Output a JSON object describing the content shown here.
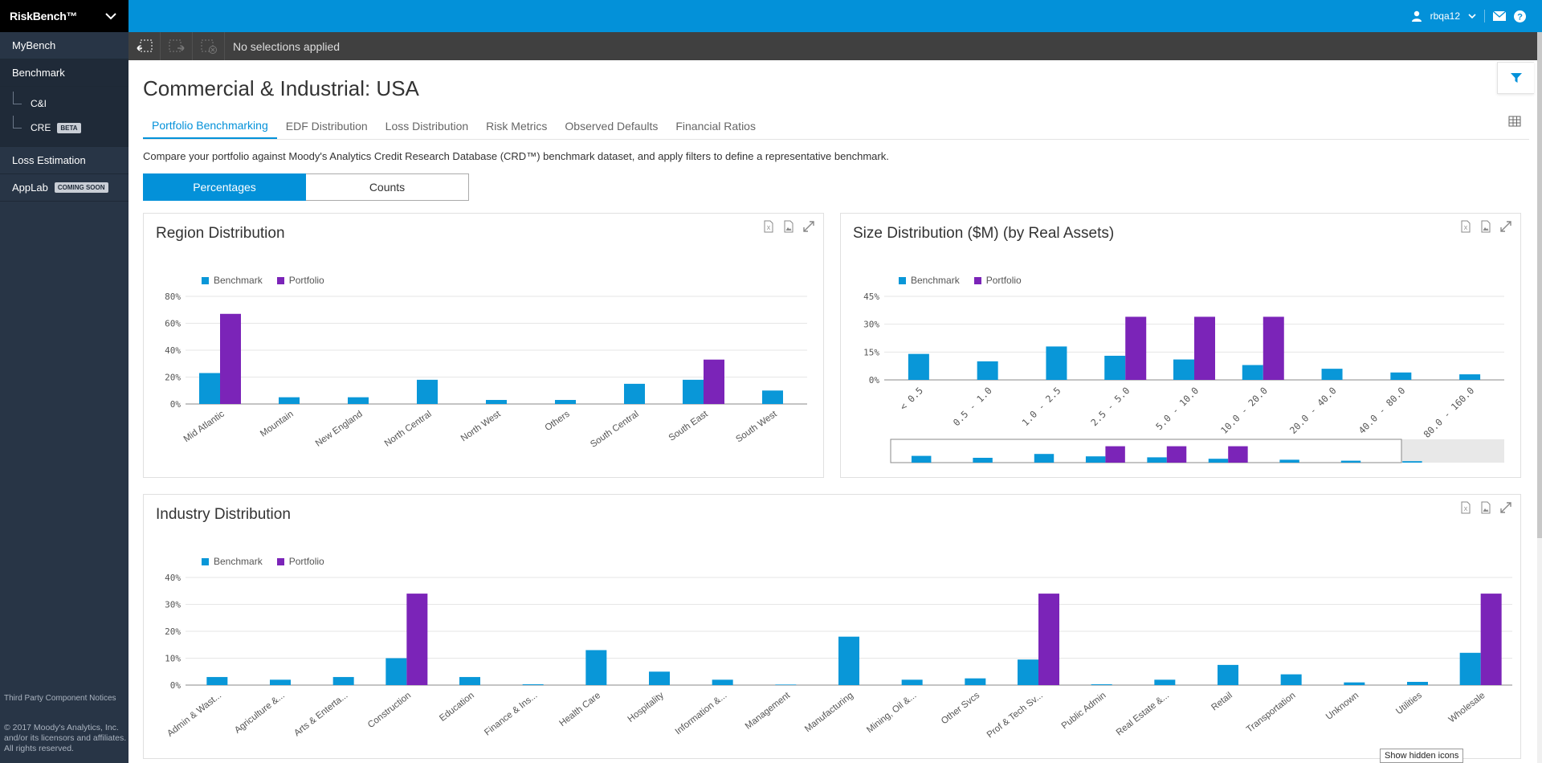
{
  "sidebar": {
    "brand": "RiskBench™",
    "items": [
      {
        "label": "MyBench"
      },
      {
        "label": "Benchmark"
      },
      {
        "label": "Loss Estimation"
      },
      {
        "label": "AppLab",
        "badge": "COMING SOON"
      }
    ],
    "benchmark_sub": [
      {
        "label": "C&I"
      },
      {
        "label": "CRE",
        "badge": "BETA"
      }
    ],
    "footer_link": "Third Party Component Notices",
    "copyright": "© 2017 Moody's Analytics, Inc. and/or its licensors and affiliates. All rights reserved."
  },
  "topbar": {
    "username": "rbqa12",
    "icons": [
      "user-icon",
      "chevron-down-icon",
      "mail-icon",
      "help-icon"
    ]
  },
  "selection_bar": {
    "text": "No selections applied",
    "tools": [
      "selection-back-icon",
      "selection-forward-icon",
      "clear-selections-icon"
    ]
  },
  "main": {
    "title": "Commercial & Industrial: USA",
    "tabs": [
      {
        "label": "Portfolio Benchmarking"
      },
      {
        "label": "EDF Distribution"
      },
      {
        "label": "Loss Distribution"
      },
      {
        "label": "Risk Metrics"
      },
      {
        "label": "Observed Defaults"
      },
      {
        "label": "Financial Ratios"
      }
    ],
    "description": "Compare your portfolio against Moody's Analytics Credit Research Database (CRD™) benchmark dataset, and apply filters to define a representative benchmark.",
    "toggle": {
      "percentages": "Percentages",
      "counts": "Counts"
    }
  },
  "colors": {
    "benchmark": "#0997d8",
    "portfolio": "#7b24b8",
    "accent": "#0391d9"
  },
  "chart_data": [
    {
      "id": "region",
      "type": "bar",
      "title": "Region Distribution",
      "legend": [
        "Benchmark",
        "Portfolio"
      ],
      "yticks": [
        "0%",
        "20%",
        "40%",
        "60%",
        "80%"
      ],
      "ylim": [
        0,
        80
      ],
      "categories": [
        "Mid Atlantic",
        "Mountain",
        "New England",
        "North Central",
        "North West",
        "Others",
        "South Central",
        "South East",
        "South West"
      ],
      "series": [
        {
          "name": "Benchmark",
          "values": [
            23,
            5,
            5,
            18,
            3,
            3,
            15,
            18,
            10
          ]
        },
        {
          "name": "Portfolio",
          "values": [
            67,
            0,
            0,
            0,
            0,
            0,
            0,
            33,
            0
          ]
        }
      ]
    },
    {
      "id": "size",
      "type": "bar",
      "title": "Size Distribution ($M) (by Real Assets)",
      "legend": [
        "Benchmark",
        "Portfolio"
      ],
      "yticks": [
        "0%",
        "15%",
        "30%",
        "45%"
      ],
      "ylim": [
        0,
        45
      ],
      "categories": [
        "< 0.5",
        "0.5 - 1.0",
        "1.0 - 2.5",
        "2.5 - 5.0",
        "5.0 - 10.0",
        "10.0 - 20.0",
        "20.0 - 40.0",
        "40.0 - 80.0",
        "80.0 - 160.0"
      ],
      "series": [
        {
          "name": "Benchmark",
          "values": [
            14,
            10,
            18,
            13,
            11,
            8,
            6,
            4,
            3
          ]
        },
        {
          "name": "Portfolio",
          "values": [
            0,
            0,
            0,
            34,
            34,
            34,
            0,
            0,
            0
          ]
        }
      ]
    },
    {
      "id": "industry",
      "type": "bar",
      "title": "Industry Distribution",
      "legend": [
        "Benchmark",
        "Portfolio"
      ],
      "yticks": [
        "0%",
        "10%",
        "20%",
        "30%",
        "40%"
      ],
      "ylim": [
        0,
        40
      ],
      "categories": [
        "Admin & Wast...",
        "Agriculture &...",
        "Arts & Enterta...",
        "Construction",
        "Education",
        "Finance & Ins...",
        "Health Care",
        "Hospitality",
        "Information &...",
        "Management",
        "Manufacturing",
        "Mining, Oil &...",
        "Other Svcs",
        "Prof & Tech Sv...",
        "Public Admin",
        "Real Estate &...",
        "Retail",
        "Transportation",
        "Unknown",
        "Utilities",
        "Wholesale"
      ],
      "series": [
        {
          "name": "Benchmark",
          "values": [
            3,
            2,
            3,
            10,
            3,
            0.3,
            13,
            5,
            2,
            0.2,
            18,
            2,
            2.5,
            9.5,
            0.3,
            2,
            7.5,
            4,
            1,
            1.2,
            12
          ]
        },
        {
          "name": "Portfolio",
          "values": [
            0,
            0,
            0,
            34,
            0,
            0,
            0,
            0,
            0,
            0,
            0,
            0,
            0,
            34,
            0,
            0,
            0,
            0,
            0,
            0,
            34
          ]
        }
      ]
    }
  ],
  "tooltip": "Show hidden icons"
}
